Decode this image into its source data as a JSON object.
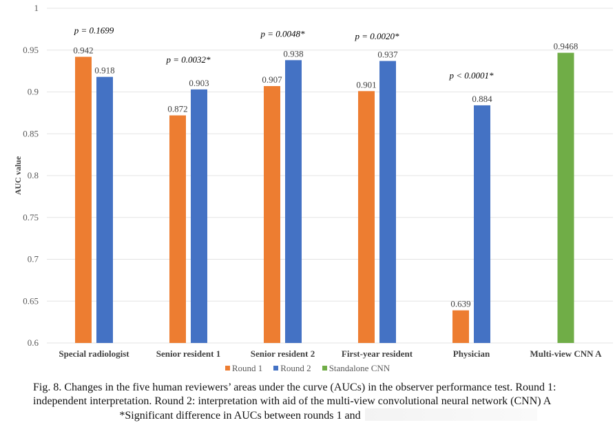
{
  "chart_data": {
    "type": "bar",
    "title": "",
    "xlabel": "",
    "ylabel": "AUC value",
    "ylim": [
      0.6,
      1.0
    ],
    "yticks": [
      0.6,
      0.65,
      0.7,
      0.75,
      0.8,
      0.85,
      0.9,
      0.95,
      1
    ],
    "ytick_labels": [
      "0.6",
      "0.65",
      "0.7",
      "0.75",
      "0.8",
      "0.85",
      "0.9",
      "0.95",
      "1"
    ],
    "grid": true,
    "legend_position": "bottom",
    "categories": [
      "Special radiologist",
      "Senior resident 1",
      "Senior resident 2",
      "First-year resident",
      "Physician",
      "Multi-view CNN A"
    ],
    "series": [
      {
        "name": "Round 1",
        "color": "#ED7D31",
        "values": [
          0.942,
          0.872,
          0.907,
          0.901,
          0.639,
          null
        ],
        "labels": [
          "0.942",
          "0.872",
          "0.907",
          "0.901",
          "0.639",
          null
        ]
      },
      {
        "name": "Round 2",
        "color": "#4472C4",
        "values": [
          0.918,
          0.903,
          0.938,
          0.937,
          0.884,
          null
        ],
        "labels": [
          "0.918",
          "0.903",
          "0.938",
          "0.937",
          "0.884",
          null
        ]
      },
      {
        "name": "Standalone CNN",
        "color": "#70AD47",
        "values": [
          null,
          null,
          null,
          null,
          null,
          0.9468
        ],
        "labels": [
          null,
          null,
          null,
          null,
          null,
          "0.9468"
        ]
      }
    ],
    "annotations": [
      {
        "category": "Special radiologist",
        "text": "p = 0.1699",
        "y": 0.97
      },
      {
        "category": "Senior resident 1",
        "text": "p = 0.0032*",
        "y": 0.935
      },
      {
        "category": "Senior resident 2",
        "text": "p = 0.0048*",
        "y": 0.966
      },
      {
        "category": "First-year resident",
        "text": "p = 0.0020*",
        "y": 0.963
      },
      {
        "category": "Physician",
        "text": "p < 0.0001*",
        "y": 0.916
      }
    ]
  },
  "caption": {
    "line1": "Fig. 8.  Changes in the five human reviewers’ areas under the curve (AUCs) in the observer performance test. Round 1:",
    "line2": "independent interpretation. Round 2: interpretation with aid of the multi-view convolutional neural network (CNN) A",
    "line3": "*Significant difference in AUCs between rounds 1 and"
  }
}
